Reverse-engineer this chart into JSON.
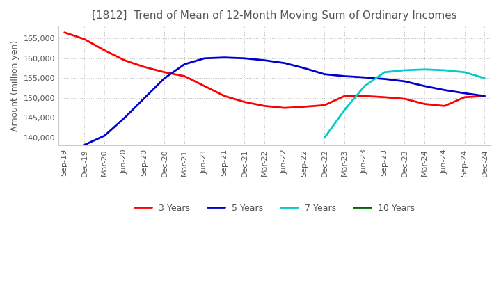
{
  "title": "[1812]  Trend of Mean of 12-Month Moving Sum of Ordinary Incomes",
  "ylabel": "Amount (million yen)",
  "line_colors": {
    "3 Years": "#ff0000",
    "5 Years": "#0000cc",
    "7 Years": "#00cccc",
    "10 Years": "#006600"
  },
  "ylim": [
    138000,
    168000
  ],
  "yticks": [
    140000,
    145000,
    150000,
    155000,
    160000,
    165000
  ],
  "x_labels": [
    "Sep-19",
    "Dec-19",
    "Mar-20",
    "Jun-20",
    "Sep-20",
    "Dec-20",
    "Mar-21",
    "Jun-21",
    "Sep-21",
    "Dec-21",
    "Mar-22",
    "Jun-22",
    "Sep-22",
    "Dec-22",
    "Mar-23",
    "Jun-23",
    "Sep-23",
    "Dec-23",
    "Mar-24",
    "Jun-24",
    "Sep-24",
    "Dec-24"
  ],
  "series": {
    "3 Years": [
      166500,
      164800,
      162000,
      159500,
      157800,
      156500,
      155500,
      153000,
      150500,
      149000,
      148000,
      147500,
      147800,
      148200,
      150500,
      150500,
      150200,
      149800,
      148500,
      148000,
      150200,
      150500
    ],
    "5 Years": [
      null,
      138200,
      140500,
      145000,
      150000,
      155000,
      158500,
      160000,
      160200,
      160000,
      159500,
      158800,
      157500,
      156000,
      155500,
      155200,
      154800,
      154200,
      153000,
      152000,
      151200,
      150500
    ],
    "7 Years": [
      null,
      null,
      null,
      null,
      null,
      null,
      null,
      null,
      null,
      null,
      null,
      null,
      null,
      140000,
      147000,
      153000,
      156500,
      157000,
      157200,
      157000,
      156500,
      155000
    ],
    "10 Years": [
      null,
      null,
      null,
      null,
      null,
      null,
      null,
      null,
      null,
      null,
      null,
      null,
      null,
      null,
      null,
      null,
      null,
      null,
      null,
      null,
      null,
      null
    ]
  },
  "background_color": "#ffffff",
  "grid_color": "#bbbbbb",
  "title_fontsize": 11,
  "axis_fontsize": 9,
  "tick_fontsize": 8
}
